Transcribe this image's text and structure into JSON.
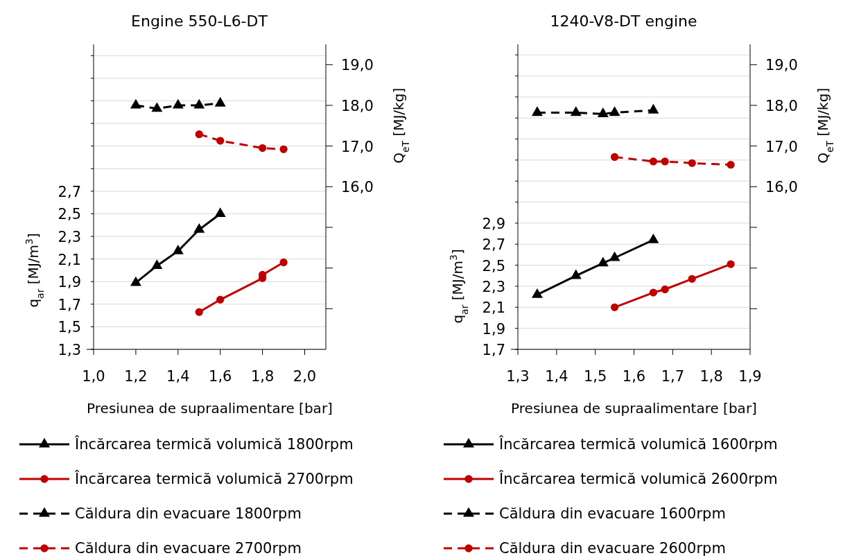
{
  "chart_data": [
    {
      "type": "line",
      "title": "Engine 550-L6-DT",
      "xlabel": "Presiunea de supraalimentare [bar]",
      "ylabel": "q$_{ar}$ [MJ/m$^{3}$]",
      "y2label": "Q$_{eT}$ [MJ/kg]",
      "xlim": [
        1.0,
        2.1
      ],
      "xticks": [
        {
          "value": 1.0,
          "label": "1,0"
        },
        {
          "value": 1.2,
          "label": "1,2"
        },
        {
          "value": 1.4,
          "label": "1,4"
        },
        {
          "value": 1.6,
          "label": "1,6"
        },
        {
          "value": 1.8,
          "label": "1,8"
        },
        {
          "value": 2.0,
          "label": "2,0"
        }
      ],
      "ylim": [
        1.3,
        4.0
      ],
      "yticks": [
        {
          "value": 1.3,
          "label": "1,3"
        },
        {
          "value": 1.5,
          "label": "1,5"
        },
        {
          "value": 1.7,
          "label": "1,7"
        },
        {
          "value": 1.9,
          "label": "1,9"
        },
        {
          "value": 2.1,
          "label": "2,1"
        },
        {
          "value": 2.3,
          "label": "2,3"
        },
        {
          "value": 2.5,
          "label": "2,5"
        },
        {
          "value": 2.7,
          "label": "2,7"
        },
        {
          "value": 2.9,
          "label": null
        },
        {
          "value": 3.1,
          "label": null
        },
        {
          "value": 3.3,
          "label": null
        },
        {
          "value": 3.5,
          "label": null
        },
        {
          "value": 3.7,
          "label": null
        },
        {
          "value": 3.9,
          "label": null
        }
      ],
      "y2lim": [
        12.0,
        19.5
      ],
      "y2ticks": [
        {
          "value": 13,
          "label": null
        },
        {
          "value": 14,
          "label": null
        },
        {
          "value": 15,
          "label": null
        },
        {
          "value": 16,
          "label": "16,0"
        },
        {
          "value": 17,
          "label": "17,0"
        },
        {
          "value": 18,
          "label": "18,0"
        },
        {
          "value": 19,
          "label": "19,0"
        }
      ],
      "grid": "y",
      "legend": "bottom",
      "series": [
        {
          "name": "Încărcarea termică volumică 1800rpm",
          "color": "#000000",
          "marker": "triangle",
          "line_style": "solid",
          "x": [
            1.2,
            1.3,
            1.4,
            1.5,
            1.6
          ],
          "values": [
            1.89,
            2.04,
            2.17,
            2.36,
            2.5
          ]
        },
        {
          "name": "Încărcarea termică volumică 2700rpm",
          "color": "#c00000",
          "marker": "circle",
          "line_style": "solid",
          "x": [
            1.5,
            1.6,
            1.8,
            1.8,
            1.9
          ],
          "values": [
            1.63,
            1.74,
            1.93,
            1.96,
            2.07
          ]
        },
        {
          "name": "Căldura din evacuare 1800rpm",
          "color": "#000000",
          "marker": "triangle",
          "line_style": "dashed",
          "axis": "y2",
          "x": [
            1.2,
            1.3,
            1.4,
            1.5,
            1.6
          ],
          "values": [
            18.0,
            17.92,
            18.0,
            18.0,
            18.05
          ]
        },
        {
          "name": "Căldura din evacuare 2700rpm",
          "color": "#c00000",
          "marker": "circle",
          "line_style": "dashed",
          "axis": "y2",
          "x": [
            1.5,
            1.6,
            1.8,
            1.9
          ],
          "values": [
            17.29,
            17.13,
            16.95,
            16.92
          ]
        }
      ]
    },
    {
      "type": "line",
      "title": "1240-V8-DT engine",
      "xlabel": "Presiunea de supraalimentare [bar]",
      "ylabel": "q$_{ar}$ [MJ/m$^{3}$]",
      "y2label": "Q$_{eT}$ [MJ/kg]",
      "xlim": [
        1.3,
        1.9
      ],
      "xticks": [
        {
          "value": 1.3,
          "label": "1,3"
        },
        {
          "value": 1.4,
          "label": "1,4"
        },
        {
          "value": 1.5,
          "label": "1,5"
        },
        {
          "value": 1.6,
          "label": "1,6"
        },
        {
          "value": 1.7,
          "label": "1,7"
        },
        {
          "value": 1.8,
          "label": "1,8"
        },
        {
          "value": 1.9,
          "label": "1,9"
        }
      ],
      "ylim": [
        1.7,
        4.6
      ],
      "yticks": [
        {
          "value": 1.7,
          "label": "1,7"
        },
        {
          "value": 1.9,
          "label": "1,9"
        },
        {
          "value": 2.1,
          "label": "2,1"
        },
        {
          "value": 2.3,
          "label": "2,3"
        },
        {
          "value": 2.5,
          "label": "2,5"
        },
        {
          "value": 2.7,
          "label": "2,7"
        },
        {
          "value": 2.9,
          "label": "2,9"
        },
        {
          "value": 3.1,
          "label": null
        },
        {
          "value": 3.3,
          "label": null
        },
        {
          "value": 3.5,
          "label": null
        },
        {
          "value": 3.7,
          "label": null
        },
        {
          "value": 3.9,
          "label": null
        },
        {
          "value": 4.1,
          "label": null
        },
        {
          "value": 4.3,
          "label": null
        },
        {
          "value": 4.5,
          "label": null
        }
      ],
      "y2lim": [
        12.0,
        19.5
      ],
      "y2ticks": [
        {
          "value": 13,
          "label": null
        },
        {
          "value": 14,
          "label": null
        },
        {
          "value": 15,
          "label": null
        },
        {
          "value": 16,
          "label": "16,0"
        },
        {
          "value": 17,
          "label": "17,0"
        },
        {
          "value": 18,
          "label": "18,0"
        },
        {
          "value": 19,
          "label": "19,0"
        }
      ],
      "grid": "y",
      "legend": "bottom",
      "series": [
        {
          "name": "Încărcarea termică volumică 1600rpm",
          "color": "#000000",
          "marker": "triangle",
          "line_style": "solid",
          "x": [
            1.35,
            1.45,
            1.52,
            1.55,
            1.65
          ],
          "values": [
            2.22,
            2.4,
            2.52,
            2.57,
            2.74
          ]
        },
        {
          "name": "Încărcarea termică volumică 2600rpm",
          "color": "#c00000",
          "marker": "circle",
          "line_style": "solid",
          "x": [
            1.55,
            1.65,
            1.68,
            1.75,
            1.85
          ],
          "values": [
            2.1,
            2.24,
            2.27,
            2.37,
            2.51
          ]
        },
        {
          "name": "Căldura din evacuare 1600rpm",
          "color": "#000000",
          "marker": "triangle",
          "line_style": "dashed",
          "axis": "y2",
          "x": [
            1.35,
            1.45,
            1.52,
            1.55,
            1.65
          ],
          "values": [
            17.82,
            17.82,
            17.79,
            17.82,
            17.88
          ]
        },
        {
          "name": "Căldura din evacuare 2600rpm",
          "color": "#c00000",
          "marker": "circle",
          "line_style": "dashed",
          "axis": "y2",
          "x": [
            1.55,
            1.65,
            1.68,
            1.75,
            1.85
          ],
          "values": [
            16.73,
            16.62,
            16.62,
            16.58,
            16.54
          ]
        }
      ]
    }
  ]
}
